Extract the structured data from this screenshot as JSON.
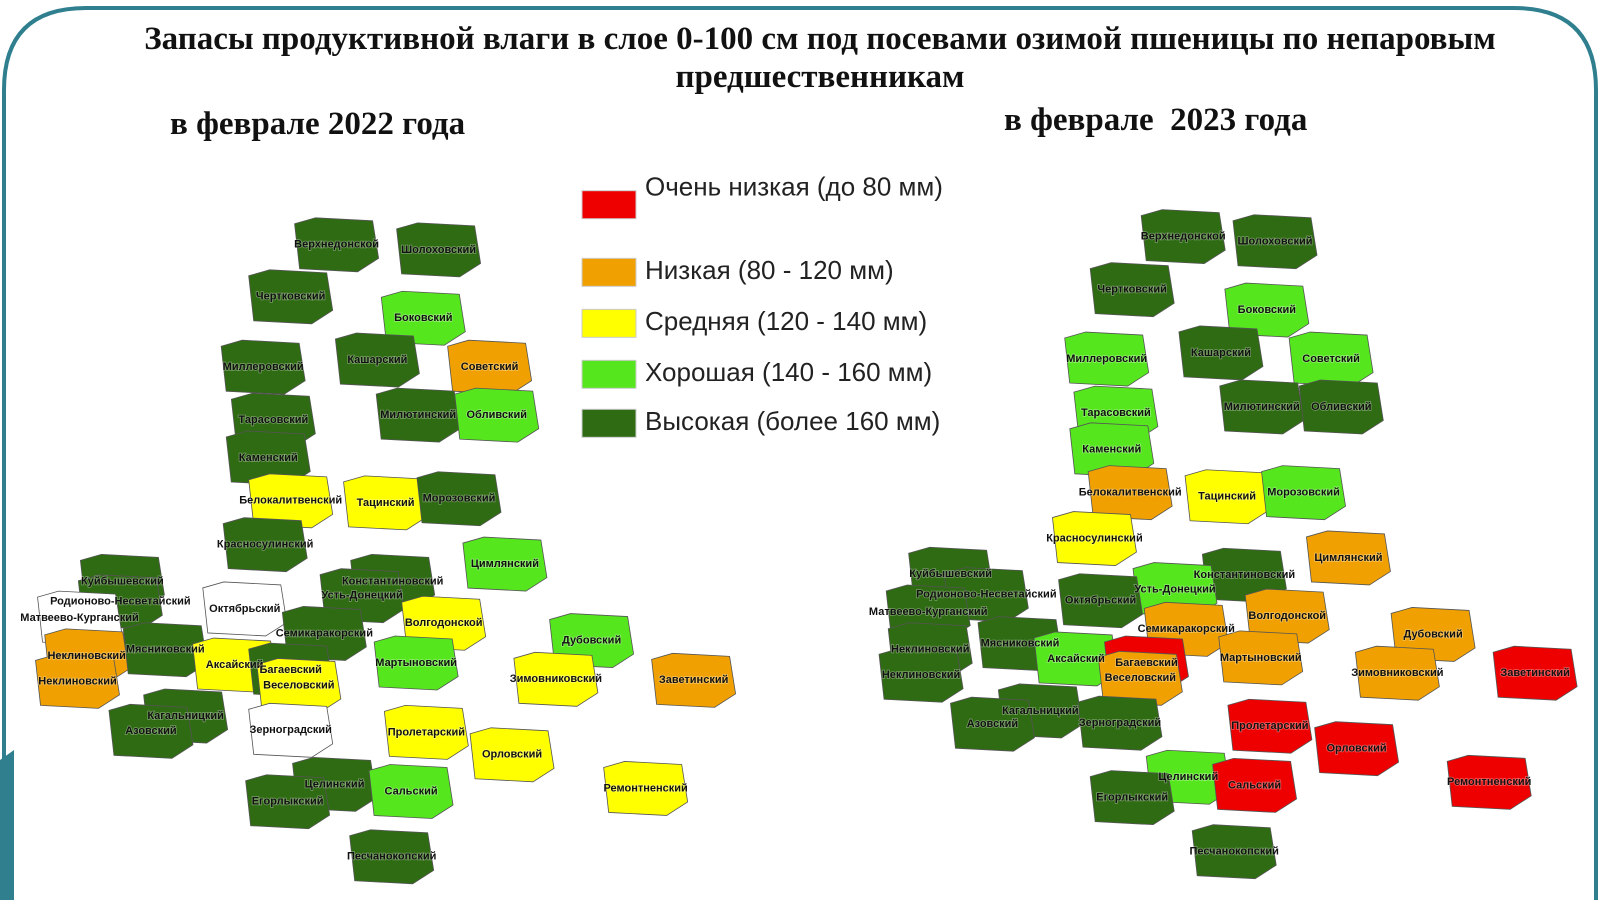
{
  "header": {
    "title": "Запасы продуктивной влаги в слое 0-100 см под посевами озимой пшеницы по непаровым предшественникам"
  },
  "legend": [
    {
      "label": "Очень низкая (до 80 мм)",
      "color": "#ee0000"
    },
    {
      "label": "Низкая (80 - 120 мм)",
      "color": "#f0a000"
    },
    {
      "label": "Средняя (120 - 140 мм)",
      "color": "#ffff00"
    },
    {
      "label": "Хорошая (140 - 160 мм)",
      "color": "#55e61e"
    },
    {
      "label": "Высокая (более 160 мм)",
      "color": "#2e6b12"
    }
  ],
  "maps": [
    {
      "subtitle": "в феврале 2022 года",
      "districts": [
        {
          "name": "Верхнедонской",
          "color": "#2e6b12"
        },
        {
          "name": "Шолоховский",
          "color": "#2e6b12"
        },
        {
          "name": "Чертковский",
          "color": "#2e6b12"
        },
        {
          "name": "Боковский",
          "color": "#55e61e"
        },
        {
          "name": "Советский",
          "color": "#f0a000"
        },
        {
          "name": "Миллеровский",
          "color": "#2e6b12"
        },
        {
          "name": "Кашарский",
          "color": "#2e6b12"
        },
        {
          "name": "Тарасовский",
          "color": "#2e6b12"
        },
        {
          "name": "Милютинский",
          "color": "#2e6b12"
        },
        {
          "name": "Обливский",
          "color": "#55e61e"
        },
        {
          "name": "Каменский",
          "color": "#2e6b12"
        },
        {
          "name": "Белокалитвенский",
          "color": "#ffff00"
        },
        {
          "name": "Тацинский",
          "color": "#ffff00"
        },
        {
          "name": "Морозовский",
          "color": "#2e6b12"
        },
        {
          "name": "Красносулинский",
          "color": "#2e6b12"
        },
        {
          "name": "Цимлянский",
          "color": "#55e61e"
        },
        {
          "name": "Куйбышевский",
          "color": "#2e6b12"
        },
        {
          "name": "Константиновский",
          "color": "#2e6b12"
        },
        {
          "name": "Усть-Донецкий",
          "color": "#2e6b12"
        },
        {
          "name": "Родионово-Несветайский",
          "color": "#2e6b12"
        },
        {
          "name": "Октябрьский",
          "color": "#ffffff"
        },
        {
          "name": "Матвеево-Курганский",
          "color": "#ffffff"
        },
        {
          "name": "Волгодонской",
          "color": "#ffff00"
        },
        {
          "name": "Семикаракорский",
          "color": "#2e6b12"
        },
        {
          "name": "Дубовский",
          "color": "#55e61e"
        },
        {
          "name": "Неклиновский",
          "color": "#f0a000"
        },
        {
          "name": "Мясниковский",
          "color": "#2e6b12"
        },
        {
          "name": "Аксайский",
          "color": "#ffff00"
        },
        {
          "name": "Мартыновский",
          "color": "#55e61e"
        },
        {
          "name": "Багаевский",
          "color": "#2e6b12"
        },
        {
          "name": "Неклиновский",
          "color": "#f0a000"
        },
        {
          "name": "Веселовский",
          "color": "#ffff00"
        },
        {
          "name": "Зимовниковский",
          "color": "#ffff00"
        },
        {
          "name": "Заветинский",
          "color": "#f0a000"
        },
        {
          "name": "Кагальницкий",
          "color": "#2e6b12"
        },
        {
          "name": "Азовский",
          "color": "#2e6b12"
        },
        {
          "name": "Зерноградский",
          "color": "#ffffff"
        },
        {
          "name": "Пролетарский",
          "color": "#ffff00"
        },
        {
          "name": "Орловский",
          "color": "#ffff00"
        },
        {
          "name": "Целинский",
          "color": "#2e6b12"
        },
        {
          "name": "Сальский",
          "color": "#55e61e"
        },
        {
          "name": "Ремонтненский",
          "color": "#ffff00"
        },
        {
          "name": "Егорлыкский",
          "color": "#2e6b12"
        },
        {
          "name": "Песчанокопский",
          "color": "#2e6b12"
        }
      ]
    },
    {
      "subtitle": "в феврале  2023 года",
      "districts": [
        {
          "name": "Верхнедонской",
          "color": "#2e6b12"
        },
        {
          "name": "Шолоховский",
          "color": "#2e6b12"
        },
        {
          "name": "Чертковский",
          "color": "#2e6b12"
        },
        {
          "name": "Боковский",
          "color": "#55e61e"
        },
        {
          "name": "Миллеровский",
          "color": "#55e61e"
        },
        {
          "name": "Кашарский",
          "color": "#2e6b12"
        },
        {
          "name": "Советский",
          "color": "#55e61e"
        },
        {
          "name": "Тарасовский",
          "color": "#55e61e"
        },
        {
          "name": "Милютинский",
          "color": "#2e6b12"
        },
        {
          "name": "Обливский",
          "color": "#2e6b12"
        },
        {
          "name": "Каменский",
          "color": "#55e61e"
        },
        {
          "name": "Белокалитвенский",
          "color": "#f0a000"
        },
        {
          "name": "Тацинский",
          "color": "#ffff00"
        },
        {
          "name": "Морозовский",
          "color": "#55e61e"
        },
        {
          "name": "Красносулинский",
          "color": "#ffff00"
        },
        {
          "name": "Цимлянский",
          "color": "#f0a000"
        },
        {
          "name": "Куйбышевский",
          "color": "#2e6b12"
        },
        {
          "name": "Константиновский",
          "color": "#2e6b12"
        },
        {
          "name": "Родионово-Несветайский",
          "color": "#2e6b12"
        },
        {
          "name": "Усть-Донецкий",
          "color": "#55e61e"
        },
        {
          "name": "Октябрьский",
          "color": "#2e6b12"
        },
        {
          "name": "Матвеево-Курганский",
          "color": "#2e6b12"
        },
        {
          "name": "Волгодонской",
          "color": "#f0a000"
        },
        {
          "name": "Семикаракорский",
          "color": "#f0a000"
        },
        {
          "name": "Дубовский",
          "color": "#f0a000"
        },
        {
          "name": "Неклиновский",
          "color": "#2e6b12"
        },
        {
          "name": "Мясниковский",
          "color": "#2e6b12"
        },
        {
          "name": "Аксайский",
          "color": "#55e61e"
        },
        {
          "name": "Мартыновский",
          "color": "#f0a000"
        },
        {
          "name": "Багаевский",
          "color": "#ee0000"
        },
        {
          "name": "Веселовский",
          "color": "#f0a000"
        },
        {
          "name": "Неклиновский",
          "color": "#2e6b12"
        },
        {
          "name": "Зимовниковский",
          "color": "#f0a000"
        },
        {
          "name": "Заветинский",
          "color": "#ee0000"
        },
        {
          "name": "Кагальницкий",
          "color": "#2e6b12"
        },
        {
          "name": "Азовский",
          "color": "#2e6b12"
        },
        {
          "name": "Зерноградский",
          "color": "#2e6b12"
        },
        {
          "name": "Пролетарский",
          "color": "#ee0000"
        },
        {
          "name": "Орловский",
          "color": "#ee0000"
        },
        {
          "name": "Целинский",
          "color": "#55e61e"
        },
        {
          "name": "Сальский",
          "color": "#ee0000"
        },
        {
          "name": "Ремонтненский",
          "color": "#ee0000"
        },
        {
          "name": "Егорлыкский",
          "color": "#2e6b12"
        },
        {
          "name": "Песчанокопский",
          "color": "#2e6b12"
        }
      ]
    }
  ]
}
